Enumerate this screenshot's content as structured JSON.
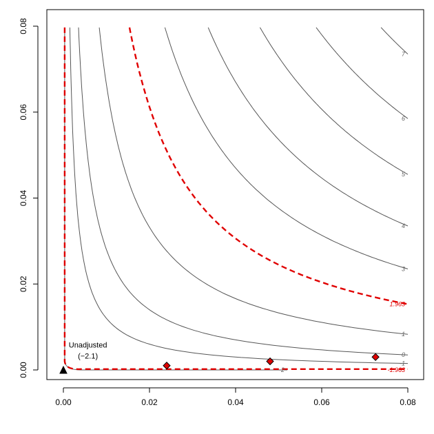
{
  "chart_data": {
    "type": "contour",
    "title": "",
    "xlabel": "",
    "ylabel": "",
    "xlim": [
      0,
      0.08
    ],
    "ylim": [
      0,
      0.08
    ],
    "x_ticks": [
      "0.00",
      "0.02",
      "0.04",
      "0.06",
      "0.08"
    ],
    "y_ticks": [
      "0.00",
      "0.02",
      "0.04",
      "0.06",
      "0.08"
    ],
    "grid": false,
    "contours": [
      {
        "level": "-2",
        "value": -2,
        "color": "#555555",
        "dashed": false,
        "label_at": [
          0.052,
          0.0
        ]
      },
      {
        "level": "-1",
        "value": -1,
        "color": "#555555",
        "dashed": false,
        "label_at": [
          0.08,
          0.0015
        ]
      },
      {
        "level": "0",
        "value": 0,
        "color": "#555555",
        "dashed": false,
        "label_at": [
          0.08,
          0.0035
        ]
      },
      {
        "level": "1",
        "value": 1,
        "color": "#555555",
        "dashed": false,
        "label_at": [
          0.08,
          0.0083
        ]
      },
      {
        "level": "3",
        "value": 3,
        "color": "#555555",
        "dashed": false,
        "label_at": [
          0.08,
          0.0235
        ]
      },
      {
        "level": "4",
        "value": 4,
        "color": "#555555",
        "dashed": false,
        "label_at": [
          0.08,
          0.0335
        ]
      },
      {
        "level": "5",
        "value": 5,
        "color": "#555555",
        "dashed": false,
        "label_at": [
          0.08,
          0.0455
        ]
      },
      {
        "level": "6",
        "value": 6,
        "color": "#555555",
        "dashed": false,
        "label_at": [
          0.08,
          0.0585
        ]
      },
      {
        "level": "7",
        "value": 7,
        "color": "#555555",
        "dashed": false,
        "label_at": [
          0.08,
          0.0735
        ]
      },
      {
        "level": "-1.963",
        "value": -1.963,
        "color": "#e00000",
        "dashed": true,
        "label_at": [
          0.08,
          0.0
        ]
      },
      {
        "level": "1.963",
        "value": 1.963,
        "color": "#e00000",
        "dashed": true,
        "label_at": [
          0.08,
          0.0153
        ]
      }
    ],
    "points": [
      {
        "x": 0.024,
        "y": 0.001,
        "shape": "diamond",
        "color": "#e00000"
      },
      {
        "x": 0.048,
        "y": 0.002,
        "shape": "diamond",
        "color": "#e00000"
      },
      {
        "x": 0.0725,
        "y": 0.003,
        "shape": "diamond",
        "color": "#e00000"
      },
      {
        "x": 0.0,
        "y": 0.0,
        "shape": "triangle",
        "color": "#000000"
      }
    ],
    "annotation": {
      "line1": "Unadjusted",
      "line2": "(−2.1)",
      "anchor": [
        0.0009,
        0.0052
      ]
    }
  },
  "colors": {
    "contour": "#555555",
    "threshold": "#e00000",
    "axis": "#000000"
  }
}
